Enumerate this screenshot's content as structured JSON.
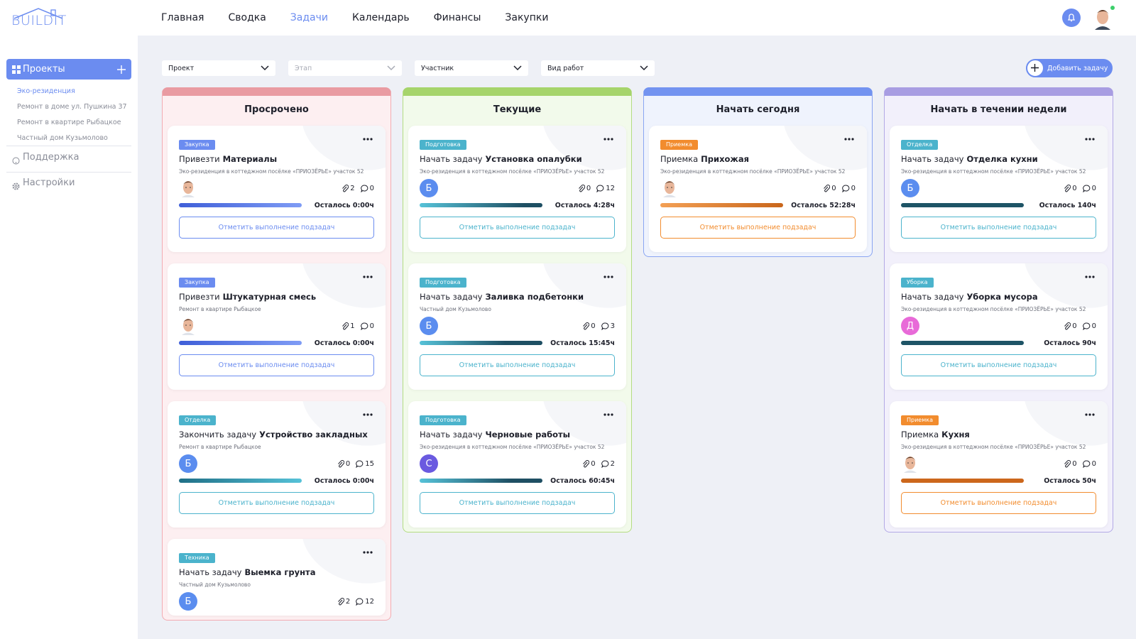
{
  "header": {
    "logo": "BUILDIT",
    "nav": [
      "Главная",
      "Сводка",
      "Задачи",
      "Календарь",
      "Финансы",
      "Закупки"
    ],
    "active_nav": 2
  },
  "sidebar": {
    "projects_title": "Проекты",
    "projects": [
      "Эко-резиденция",
      "Ремонт в доме ул. Пушкина 37",
      "Ремонт в квартире Рыбацкое",
      "Частный дом Кузьмолово"
    ],
    "active_project": 0,
    "support": "Поддержка",
    "settings": "Настройки"
  },
  "toolbar": {
    "filters": [
      {
        "label": "Проект"
      },
      {
        "label": "Этап",
        "disabled": true
      },
      {
        "label": "Участник"
      },
      {
        "label": "Вид работ"
      }
    ],
    "add_button": "Добавить задачу"
  },
  "columns": [
    {
      "title": "Просрочено",
      "color": "#e99ba2",
      "bg": "#fdeff1",
      "border": "#f2acb2",
      "cards": [
        {
          "tag": "Закупка",
          "accent": "#6b8cf0",
          "bar": "linear-gradient(90deg,#3f5fd8,#7f9cf5)",
          "action": "Привезти",
          "subject": "Материалы",
          "project": "Эко-резиденция в коттеджном посёлке «ПРИОЗЁРЬЕ» участок 52",
          "attachments": 2,
          "comments": 0,
          "remaining": "Осталось 0:00ч",
          "button": "Отметить выполнение подзадач"
        },
        {
          "tag": "Закупка",
          "accent": "#6b8cf0",
          "bar": "linear-gradient(90deg,#3f5fd8,#7f9cf5)",
          "action": "Привезти",
          "subject": "Штукатурная смесь",
          "project": "Ремонт в квартире Рыбацкое",
          "attachments": 1,
          "comments": 0,
          "remaining": "Осталось 0:00ч",
          "button": "Отметить выполнение подзадач"
        },
        {
          "tag": "Отделка",
          "accent": "#4bb3cc",
          "bar": "linear-gradient(90deg,#1f6f86,#56c2d8)",
          "action": "Закончить задачу",
          "subject": "Устройство закладных",
          "project": "Ремонт в квартире Рыбацкое",
          "avatar": "Б",
          "avatar_color": "#5b8def",
          "attachments": 0,
          "comments": 15,
          "remaining": "Осталось 0:00ч",
          "button": "Отметить выполнение подзадач"
        },
        {
          "tag": "Техника",
          "accent": "#4bb3cc",
          "action": "Начать задачу",
          "subject": "Выемка грунта",
          "project": "Частный дом Кузьмолово",
          "avatar": "Б",
          "avatar_color": "#5b8def",
          "attachments": 2,
          "comments": 12
        }
      ]
    },
    {
      "title": "Текущие",
      "color": "#a6d46b",
      "bg": "#f2faeb",
      "border": "#b4dc82",
      "cards": [
        {
          "tag": "Подготовка",
          "accent": "#4bb3cc",
          "bar": "linear-gradient(90deg,#56c2d8,#1e4f63 85%)",
          "action": "Начать задачу",
          "subject": "Установка опалубки",
          "project": "Эко-резиденция в коттеджном посёлке «ПРИОЗЁРЬЕ» участок 52",
          "avatar": "Б",
          "avatar_color": "#5b8def",
          "attachments": 0,
          "comments": 12,
          "remaining": "Осталось 4:28ч",
          "button": "Отметить выполнение подзадач"
        },
        {
          "tag": "Подготовка",
          "accent": "#4bb3cc",
          "bar": "linear-gradient(90deg,#56c2d8,#1e4f63 70%)",
          "action": "Начать задачу",
          "subject": "Заливка подбетонки",
          "project": "Частный дом Кузьмолово",
          "avatar": "Б",
          "avatar_color": "#5b8def",
          "attachments": 0,
          "comments": 3,
          "remaining": "Осталось 15:45ч",
          "button": "Отметить выполнение подзадач"
        },
        {
          "tag": "Подготовка",
          "accent": "#4bb3cc",
          "bar": "linear-gradient(90deg,#56c2d8,#1e4f63 75%)",
          "action": "Начать задачу",
          "subject": "Черновые работы",
          "project": "Эко-резиденция в коттеджном посёлке «ПРИОЗЁРЬЕ» участок 52",
          "avatar": "С",
          "avatar_color": "#6a5ae0",
          "attachments": 0,
          "comments": 2,
          "remaining": "Осталось 60:45ч",
          "button": "Отметить выполнение подзадач"
        }
      ]
    },
    {
      "title": "Начать сегодня",
      "color": "#7393f0",
      "bg": "#eff3fd",
      "border": "#8aa5f2",
      "cards": [
        {
          "tag": "Приемка",
          "accent": "#f28c2e",
          "bar": "linear-gradient(90deg,#f3a055,#c9661b)",
          "action": "Приемка",
          "subject": "Прихожая",
          "project": "Эко-резиденция в коттеджном посёлке «ПРИОЗЁРЬЕ» участок 52",
          "attachments": 0,
          "comments": 0,
          "remaining": "Осталось 52:28ч",
          "button": "Отметить выполнение подзадач"
        }
      ]
    },
    {
      "title": "Начать в течении недели",
      "color": "#a89de2",
      "bg": "#f2f0fb",
      "border": "#b3a9e6",
      "cards": [
        {
          "tag": "Отделка",
          "accent": "#4bb3cc",
          "bar": "#1e5466",
          "action": "Начать задачу",
          "subject": "Отделка кухни",
          "project": "Эко-резиденция в коттеджном посёлке «ПРИОЗЁРЬЕ» участок 52",
          "avatar": "Б",
          "avatar_color": "#5b8def",
          "attachments": 0,
          "comments": 0,
          "remaining": "Осталось 140ч",
          "button": "Отметить выполнение подзадач"
        },
        {
          "tag": "Уборка",
          "accent": "#4bb3cc",
          "bar": "#1e5466",
          "action": "Начать задачу",
          "subject": "Уборка мусора",
          "project": "Эко-резиденция в коттеджном посёлке «ПРИОЗЁРЬЕ» участок 52",
          "avatar": "Д",
          "avatar_color": "#e86ad8",
          "attachments": 0,
          "comments": 0,
          "remaining": "Осталось 90ч",
          "button": "Отметить выполнение подзадач"
        },
        {
          "tag": "Приемка",
          "accent": "#f28c2e",
          "bar": "#cc671c",
          "action": "Приемка",
          "subject": "Кухня",
          "project": "Эко-резиденция в коттеджном посёлке «ПРИОЗЁРЬЕ» участок 52",
          "attachments": 0,
          "comments": 0,
          "remaining": "Осталось 50ч",
          "button": "Отметить выполнение подзадач"
        }
      ]
    }
  ]
}
